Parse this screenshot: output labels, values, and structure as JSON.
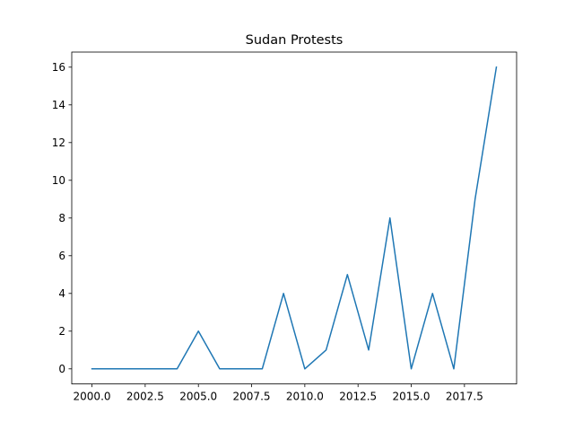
{
  "chart_data": {
    "type": "line",
    "title": "Sudan Protests",
    "xlabel": "",
    "ylabel": "",
    "grid": false,
    "xlim": [
      1999.05,
      2019.95
    ],
    "ylim": [
      -0.8,
      16.8
    ],
    "xticks": [
      2000.0,
      2002.5,
      2005.0,
      2007.5,
      2010.0,
      2012.5,
      2015.0,
      2017.5
    ],
    "xtick_labels": [
      "2000.0",
      "2002.5",
      "2005.0",
      "2007.5",
      "2010.0",
      "2012.5",
      "2015.0",
      "2017.5"
    ],
    "yticks": [
      0,
      2,
      4,
      6,
      8,
      10,
      12,
      14,
      16
    ],
    "ytick_labels": [
      "0",
      "2",
      "4",
      "6",
      "8",
      "10",
      "12",
      "14",
      "16"
    ],
    "series": [
      {
        "color": "#1f77b4",
        "x": [
          2000,
          2001,
          2002,
          2003,
          2004,
          2005,
          2006,
          2007,
          2008,
          2009,
          2010,
          2011,
          2012,
          2013,
          2014,
          2015,
          2016,
          2017,
          2018,
          2019
        ],
        "y": [
          0,
          0,
          0,
          0,
          0,
          2,
          0,
          0,
          0,
          4,
          0,
          1,
          5,
          1,
          8,
          0,
          4,
          0,
          9,
          16
        ]
      }
    ]
  }
}
